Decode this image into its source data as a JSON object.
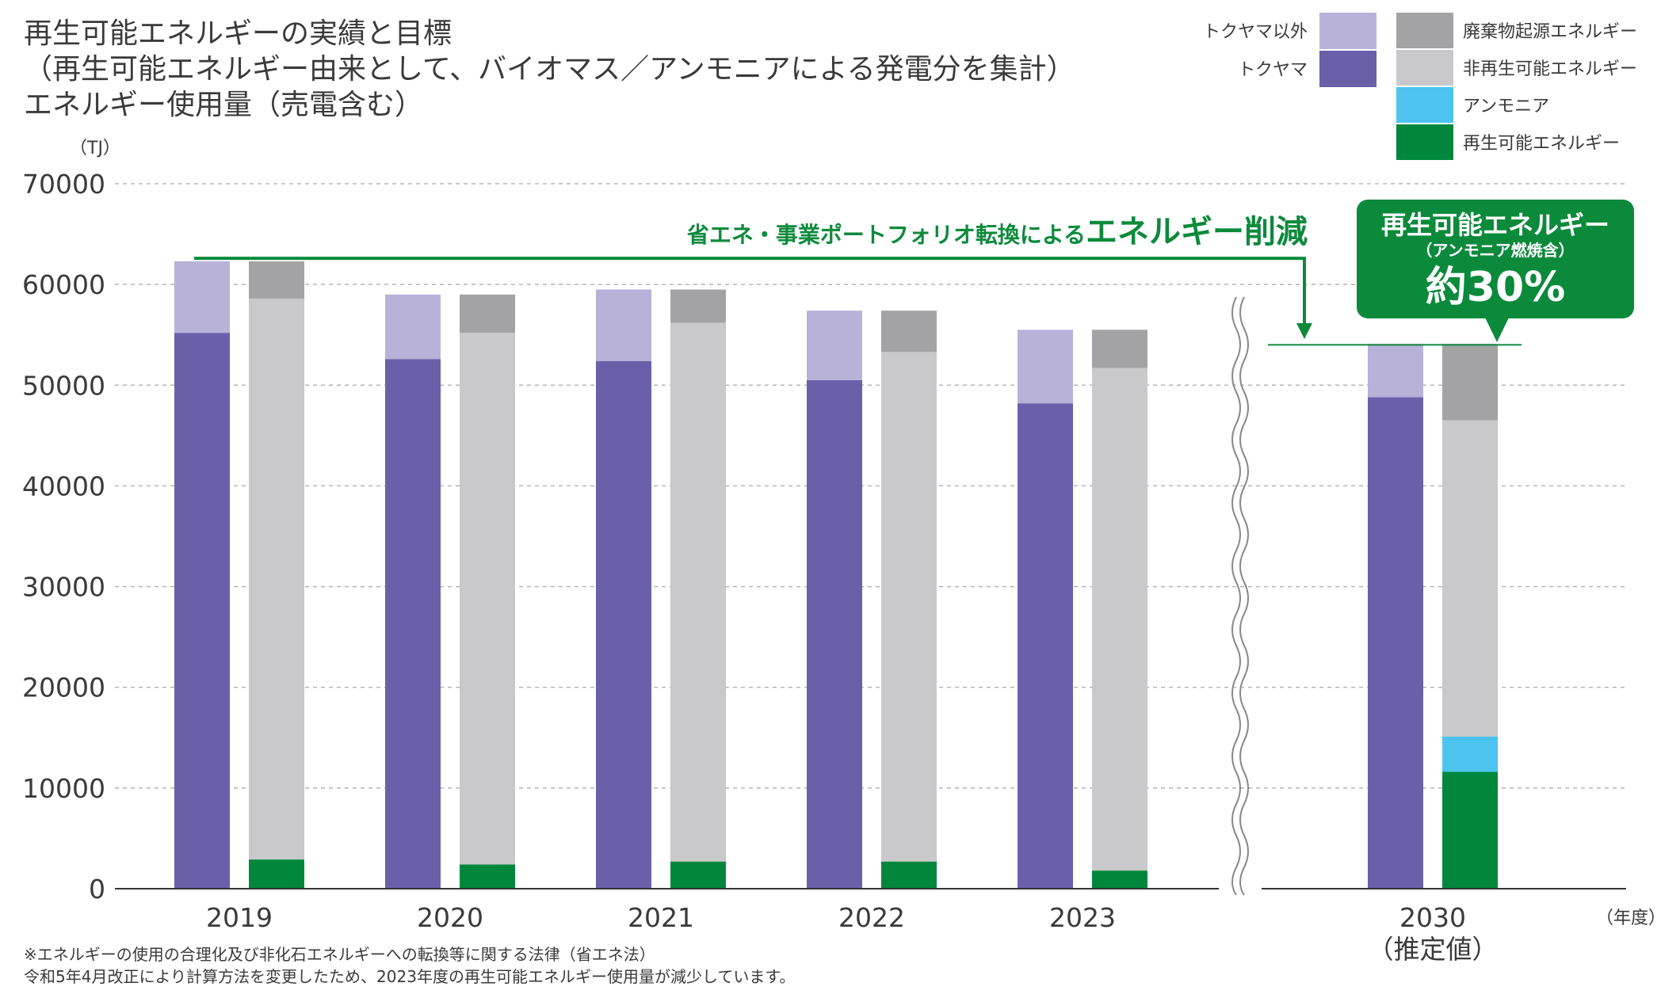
{
  "title_lines": [
    "再生可能エネルギーの実績と目標",
    "（再生可能エネルギー由来として、バイオマス／アンモニアによる発電分を集計）",
    "エネルギー使用量（売電含む）"
  ],
  "footnotes": [
    "※エネルギーの使用の合理化及び非化石エネルギーへの転換等に関する法律（省エネ法）",
    "令和5年4月改正により計算方法を変更したため、2023年度の再生可能エネルギー使用量が減少しています。"
  ],
  "annotation": {
    "reduction_prefix": "省エネ・事業ポートフォリオ転換による",
    "reduction_emphasis": "エネルギー削減",
    "callout_title": "再生可能エネルギー",
    "callout_sub": "（アンモニア燃焼含）",
    "callout_value": "約30%"
  },
  "colors": {
    "tokuyama": "#6a60aa",
    "non_tokuyama": "#b8b2d8",
    "waste": "#a3a3a5",
    "non_renewable": "#c9c9cb",
    "ammonia": "#4dc3f0",
    "renewable": "#00873c",
    "accent_green": "#0c8a3c",
    "grid": "#b5b5b5",
    "axis": "#333333"
  },
  "chart_data": {
    "type": "bar",
    "title": "エネルギー使用量（売電含む）",
    "ylabel": "（TJ）",
    "xlabel": "（年度）",
    "ylim": [
      0,
      70000
    ],
    "yticks": [
      0,
      10000,
      20000,
      30000,
      40000,
      50000,
      60000,
      70000
    ],
    "grid": true,
    "legend_position": "top-right",
    "categories": [
      "2019",
      "2020",
      "2021",
      "2022",
      "2023",
      "2030"
    ],
    "category_labels": [
      [
        "2019"
      ],
      [
        "2020"
      ],
      [
        "2021"
      ],
      [
        "2022"
      ],
      [
        "2023"
      ],
      [
        "2030",
        "（推定値）"
      ]
    ],
    "stacks": [
      {
        "stack": "company",
        "series": [
          {
            "name": "トクヤマ",
            "color_key": "tokuyama",
            "values": [
              55200,
              52600,
              52400,
              50500,
              48200,
              48800
            ]
          },
          {
            "name": "トクヤマ以外",
            "color_key": "non_tokuyama",
            "values": [
              7100,
              6400,
              7100,
              6900,
              7300,
              5300
            ]
          }
        ]
      },
      {
        "stack": "source",
        "series": [
          {
            "name": "再生可能エネルギー",
            "color_key": "renewable",
            "values": [
              2900,
              2400,
              2700,
              2700,
              1800,
              11600
            ]
          },
          {
            "name": "アンモニア",
            "color_key": "ammonia",
            "values": [
              0,
              0,
              0,
              0,
              0,
              3500
            ]
          },
          {
            "name": "非再生可能エネルギー",
            "color_key": "non_renewable",
            "values": [
              55700,
              52800,
              53500,
              50600,
              49900,
              31400
            ]
          },
          {
            "name": "廃棄物起源エネルギー",
            "color_key": "waste",
            "values": [
              3700,
              3800,
              3300,
              4100,
              3800,
              7600
            ]
          }
        ]
      }
    ],
    "reference_level_2019": 62600,
    "target_level_2030": 54000
  },
  "legend_left": [
    {
      "label": "トクヤマ以外",
      "color_key": "non_tokuyama"
    },
    {
      "label": "トクヤマ",
      "color_key": "tokuyama"
    }
  ],
  "legend_right": [
    {
      "label": "廃棄物起源エネルギー",
      "color_key": "waste"
    },
    {
      "label": "非再生可能エネルギー",
      "color_key": "non_renewable"
    },
    {
      "label": "アンモニア",
      "color_key": "ammonia"
    },
    {
      "label": "再生可能エネルギー",
      "color_key": "renewable"
    }
  ]
}
